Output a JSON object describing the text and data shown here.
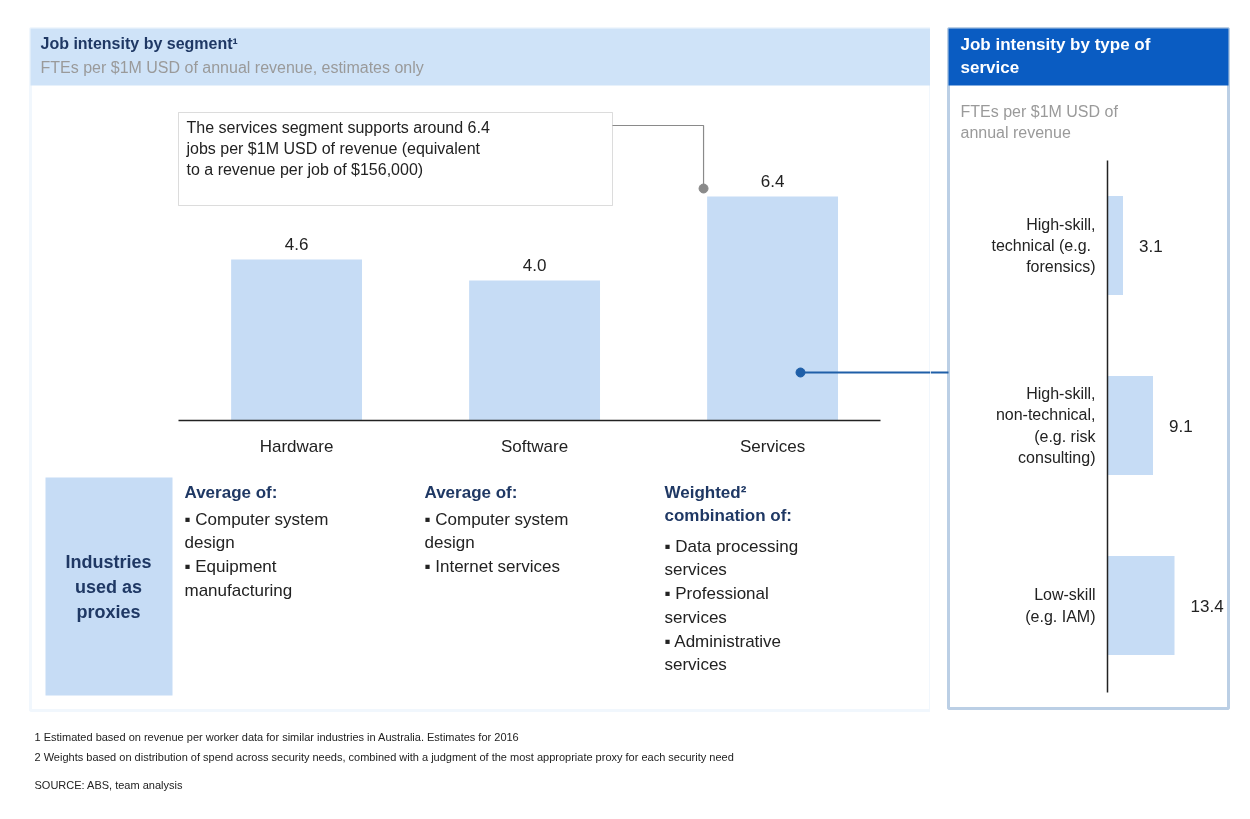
{
  "chart_data": [
    {
      "type": "bar",
      "title": "Job intensity  by segment¹",
      "subtitle": "FTEs per $1M USD of annual revenue, estimates only",
      "categories": [
        "Hardware",
        "Software",
        "Services"
      ],
      "values": [
        4.6,
        4.0,
        6.4
      ],
      "value_labels": [
        "4.6",
        "4.0",
        "6.4"
      ],
      "color": "#c6dcf5",
      "annotations": [
        "The services segment supports around 6.4\njobs per $1M USD of revenue  (equivalent\nto a revenue  per job of $156,000)",
        "Industries\nused as\nproxies",
        "Average of:",
        "▪   Computer system\n     design\n▪   Equipment\n     manufacturing",
        "Average of:",
        "▪   Computer system\n     design\n▪   Internet  services",
        "Weighted²\ncombination of:",
        "▪   Data processing\n     services\n▪   Professional\n     services\n▪   Administrative\n     services",
        "1 Estimated based on revenue  per worker data for similar industries in Australia. Estimates for 2016",
        "2 Weights based on distribution of spend across security needs, combined with a judgment  of the most appropriate proxy for each security need",
        "SOURCE: ABS, team analysis"
      ]
    },
    {
      "type": "bar",
      "orientation": "horizontal",
      "title": "Job intensity  by type of\nservice",
      "subtitle": "FTEs per $1M USD of\nannual  revenue",
      "categories": [
        "High-skill,\ntechnical  (e.g.\nforensics)",
        "High-skill,\nnon-technical,\n(e.g. risk\nconsulting)",
        "Low-skill\n(e.g. IAM)"
      ],
      "values": [
        3.1,
        9.1,
        13.4
      ],
      "color": "#c6dcf5",
      "data_labels": true
    }
  ]
}
